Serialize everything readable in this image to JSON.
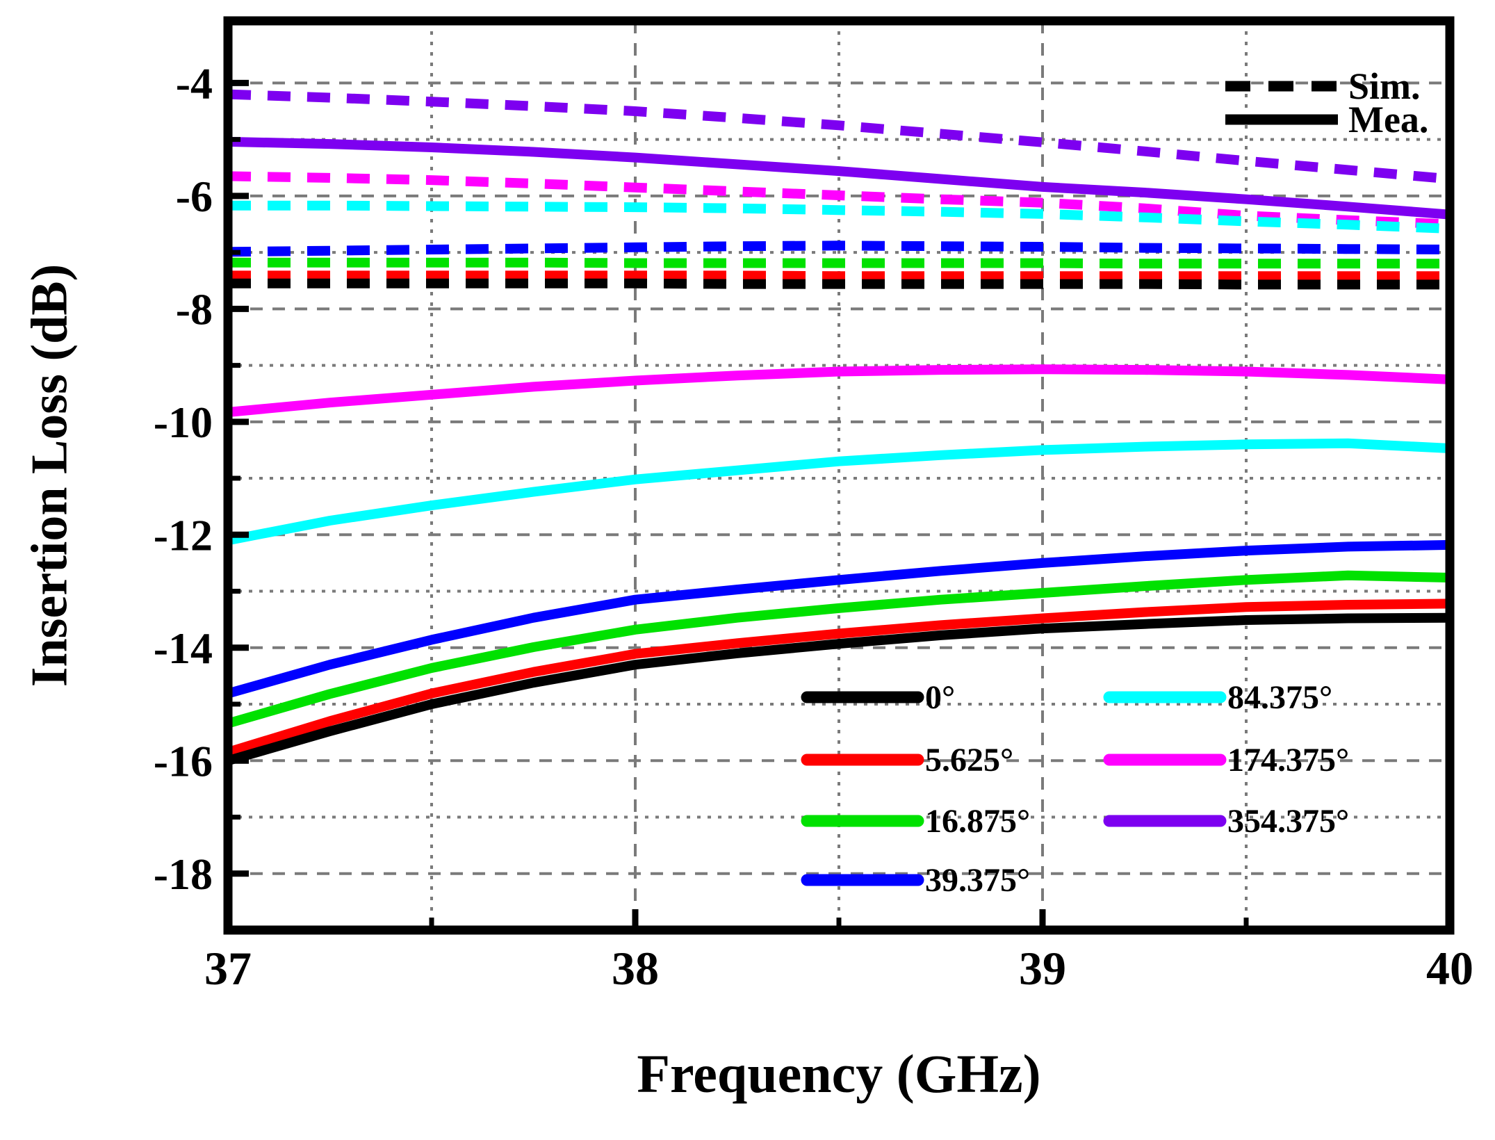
{
  "figure": {
    "background": "#ffffff",
    "frame_color": "#000000",
    "grid_color": "#7a7a7a"
  },
  "chart_data": {
    "type": "line",
    "title": "",
    "xlabel": "Frequency (GHz)",
    "ylabel": "Insertion Loss (dB)",
    "xlim": [
      37,
      40
    ],
    "ylim": [
      -19,
      -2.9
    ],
    "grid": "on",
    "x_major_ticks": [
      37,
      38,
      39,
      40
    ],
    "x_minor_ticks": [
      37.5,
      38.5,
      39.5
    ],
    "x_tick_labels": [
      "37",
      "38",
      "39",
      "40"
    ],
    "y_major_ticks": [
      -4,
      -6,
      -8,
      -10,
      -12,
      -14,
      -16,
      -18
    ],
    "y_minor_ticks": [
      -5,
      -7,
      -9,
      -11,
      -13,
      -15,
      -17
    ],
    "y_tick_labels": [
      "-4",
      "-6",
      "-8",
      "-10",
      "-12",
      "-14",
      "-16",
      "-18"
    ],
    "x": [
      37,
      37.25,
      37.5,
      37.75,
      38,
      38.25,
      38.5,
      38.75,
      39,
      39.25,
      39.5,
      39.75,
      40
    ],
    "series": [
      {
        "angle": "354.375°",
        "group": "Sim.",
        "style": "dashed",
        "color": "#7d00f0",
        "values": [
          -4.2,
          -4.26,
          -4.33,
          -4.41,
          -4.5,
          -4.62,
          -4.75,
          -4.9,
          -5.05,
          -5.21,
          -5.38,
          -5.54,
          -5.7
        ]
      },
      {
        "angle": "174.375°",
        "group": "Sim.",
        "style": "dashed",
        "color": "#ff00ff",
        "values": [
          -5.65,
          -5.68,
          -5.72,
          -5.78,
          -5.85,
          -5.92,
          -5.99,
          -6.06,
          -6.12,
          -6.22,
          -6.35,
          -6.43,
          -6.5
        ]
      },
      {
        "angle": "84.375°",
        "group": "Sim.",
        "style": "dashed",
        "color": "#00ffff",
        "values": [
          -6.17,
          -6.17,
          -6.18,
          -6.19,
          -6.2,
          -6.22,
          -6.25,
          -6.28,
          -6.32,
          -6.38,
          -6.45,
          -6.51,
          -6.58
        ]
      },
      {
        "angle": "39.375°",
        "group": "Sim.",
        "style": "dashed",
        "color": "#0000ff",
        "values": [
          -6.99,
          -6.97,
          -6.95,
          -6.93,
          -6.91,
          -6.89,
          -6.88,
          -6.89,
          -6.9,
          -6.92,
          -6.93,
          -6.94,
          -6.95
        ]
      },
      {
        "angle": "16.875°",
        "group": "Sim.",
        "style": "dashed",
        "color": "#00e100",
        "values": [
          -7.18,
          -7.18,
          -7.18,
          -7.18,
          -7.19,
          -7.19,
          -7.19,
          -7.19,
          -7.19,
          -7.2,
          -7.2,
          -7.2,
          -7.2
        ]
      },
      {
        "angle": "5.625°",
        "group": "Sim.",
        "style": "dashed",
        "color": "#ff0000",
        "values": [
          -7.41,
          -7.41,
          -7.41,
          -7.41,
          -7.41,
          -7.41,
          -7.42,
          -7.42,
          -7.42,
          -7.42,
          -7.42,
          -7.42,
          -7.42
        ]
      },
      {
        "angle": "0°",
        "group": "Sim.",
        "style": "dashed",
        "color": "#000000",
        "values": [
          -7.55,
          -7.55,
          -7.55,
          -7.55,
          -7.55,
          -7.56,
          -7.56,
          -7.56,
          -7.56,
          -7.56,
          -7.57,
          -7.57,
          -7.57
        ]
      },
      {
        "angle": "354.375°",
        "group": "Mea.",
        "style": "solid",
        "color": "#7d00f0",
        "values": [
          -5.04,
          -5.08,
          -5.14,
          -5.22,
          -5.32,
          -5.44,
          -5.56,
          -5.7,
          -5.84,
          -5.94,
          -6.06,
          -6.19,
          -6.33
        ]
      },
      {
        "angle": "174.375°",
        "group": "Mea.",
        "style": "solid",
        "color": "#ff00ff",
        "values": [
          -9.83,
          -9.66,
          -9.52,
          -9.38,
          -9.27,
          -9.18,
          -9.11,
          -9.08,
          -9.07,
          -9.08,
          -9.11,
          -9.17,
          -9.25
        ]
      },
      {
        "angle": "84.375°",
        "group": "Mea.",
        "style": "solid",
        "color": "#00ffff",
        "values": [
          -12.1,
          -11.75,
          -11.48,
          -11.24,
          -11.02,
          -10.86,
          -10.7,
          -10.59,
          -10.5,
          -10.44,
          -10.4,
          -10.38,
          -10.47
        ]
      },
      {
        "angle": "39.375°",
        "group": "Mea.",
        "style": "solid",
        "color": "#0000ff",
        "values": [
          -14.81,
          -14.3,
          -13.86,
          -13.47,
          -13.15,
          -12.97,
          -12.8,
          -12.64,
          -12.5,
          -12.38,
          -12.28,
          -12.21,
          -12.18
        ]
      },
      {
        "angle": "16.875°",
        "group": "Mea.",
        "style": "solid",
        "color": "#00e100",
        "values": [
          -15.34,
          -14.82,
          -14.36,
          -13.99,
          -13.68,
          -13.47,
          -13.3,
          -13.15,
          -13.03,
          -12.91,
          -12.8,
          -12.72,
          -12.76
        ]
      },
      {
        "angle": "5.625°",
        "group": "Mea.",
        "style": "solid",
        "color": "#ff0000",
        "values": [
          -15.85,
          -15.3,
          -14.81,
          -14.43,
          -14.11,
          -13.92,
          -13.75,
          -13.6,
          -13.48,
          -13.37,
          -13.28,
          -13.24,
          -13.22
        ]
      },
      {
        "angle": "0°",
        "group": "Mea.",
        "style": "solid",
        "color": "#000000",
        "values": [
          -16.0,
          -15.48,
          -15.0,
          -14.62,
          -14.3,
          -14.1,
          -13.93,
          -13.78,
          -13.66,
          -13.58,
          -13.51,
          -13.48,
          -13.47
        ]
      }
    ],
    "style_legend": {
      "position": "top-right",
      "entries": [
        {
          "label": "Sim.",
          "style": "dashed",
          "color": "#000000"
        },
        {
          "label": "Mea.",
          "style": "solid",
          "color": "#000000"
        }
      ]
    },
    "color_legend": {
      "position": "bottom-center",
      "columns": [
        [
          {
            "label": "0°",
            "color": "#000000"
          },
          {
            "label": "5.625°",
            "color": "#ff0000"
          },
          {
            "label": "16.875°",
            "color": "#00e100"
          },
          {
            "label": "39.375°",
            "color": "#0000ff"
          }
        ],
        [
          {
            "label": "84.375°",
            "color": "#00ffff"
          },
          {
            "label": "174.375°",
            "color": "#ff00ff"
          },
          {
            "label": "354.375°",
            "color": "#7d00f0"
          }
        ]
      ]
    }
  }
}
